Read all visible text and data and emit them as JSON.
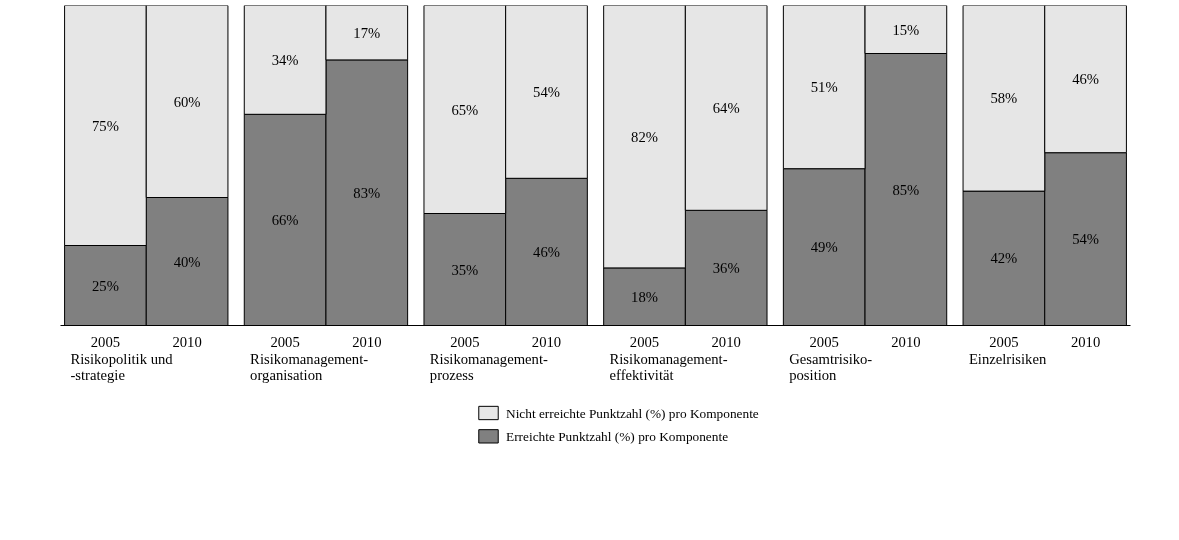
{
  "chart_data": {
    "type": "bar",
    "stacked": true,
    "categories": [
      "2005",
      "2010",
      "2005",
      "2010",
      "2005",
      "2010",
      "2005",
      "2010",
      "2005",
      "2010",
      "2005",
      "2010"
    ],
    "series": [
      {
        "name": "Erreichte Punktzahl (%) pro Komponente",
        "color": "#808080",
        "values": [
          25,
          40,
          66,
          83,
          35,
          46,
          18,
          36,
          49,
          85,
          42,
          54
        ],
        "value_labels": [
          "25%",
          "40%",
          "66%",
          "83%",
          "35%",
          "46%",
          "18%",
          "36%",
          "49%",
          "85%",
          "42%",
          "54%"
        ]
      },
      {
        "name": "Nicht erreichte Punktzahl (%) pro Komponente",
        "color": "#e6e6e6",
        "values": [
          75,
          60,
          34,
          17,
          65,
          54,
          82,
          64,
          51,
          15,
          58,
          46
        ],
        "value_labels": [
          "75%",
          "60%",
          "34%",
          "17%",
          "65%",
          "54%",
          "82%",
          "64%",
          "51%",
          "15%",
          "58%",
          "46%"
        ]
      }
    ],
    "annotations": [
      "Risikopolitik und\n-strategie",
      "Risikomanagement-\norganisation",
      "Risikomanagement-\nprozess",
      "Risikomanagement-\neffektivität",
      "Gesamtrisiko-\nposition",
      "Einzelrisiken"
    ],
    "legend": "bottom"
  }
}
